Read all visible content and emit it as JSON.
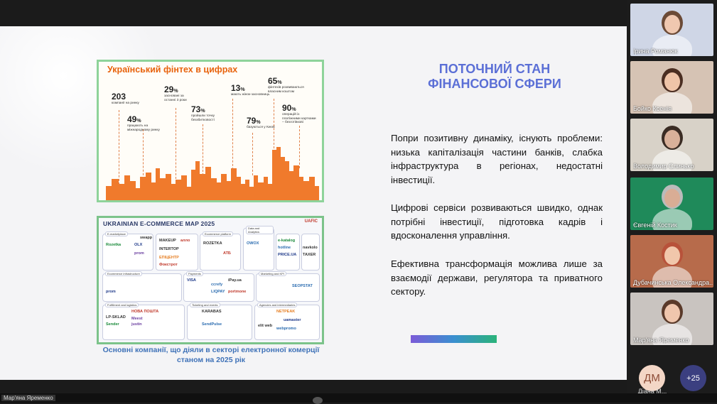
{
  "slide": {
    "title_line1": "ПОТОЧНИЙ СТАН",
    "title_line2": "ФІНАНСОВОЇ СФЕРИ",
    "paragraph1": "Попри позитивну динаміку, існують проблеми: низька капіталізація частини банків, слабка інфраструктура в регіонах, недостатні інвестиції.",
    "paragraph2": "Цифрові сервіси розвиваються швидко, однак потрібні інвестиції, підготовка кадрів і вдосконалення управління.",
    "paragraph3": "Ефективна трансформація можлива лише за взаємодії держави, регулятора та приватного сектору.",
    "caption_line1": "Основні компанії, що діяли в секторі електронної комерції",
    "caption_line2": "станом на 2025 рік",
    "accent_colors": [
      "#7b5bd8",
      "#3a8fd0",
      "#2ab37a"
    ]
  },
  "fintech": {
    "title": "Український фінтех в цифрах",
    "stats": [
      {
        "num": "203",
        "suffix": "",
        "caption": "компанії на ринку"
      },
      {
        "num": "49",
        "suffix": "%",
        "caption": "працюють на міжнародному ринку"
      },
      {
        "num": "29",
        "suffix": "%",
        "caption": "засновані за останні 3 роки"
      },
      {
        "num": "73",
        "suffix": "%",
        "caption": "пройшли точку беззбитковості"
      },
      {
        "num": "13",
        "suffix": "%",
        "caption": "мають жінок-засновниць"
      },
      {
        "num": "65",
        "suffix": "%",
        "caption": "фінтехів розвиваються власним коштом"
      },
      {
        "num": "79",
        "suffix": "%",
        "caption": "базуються у Києві"
      },
      {
        "num": "90",
        "suffix": "%",
        "caption": "операцій із платіжними картками – безготівкові"
      }
    ]
  },
  "ecommerce": {
    "title": "UKRAINIAN E-COMMERCE MAP 2025",
    "logo": "UAFIC",
    "sections": [
      "E-marketplace",
      "Ecommerce platform",
      "Data and Analytics",
      "Ecommerce infrastructure",
      "Payments",
      "Price comparison",
      "Finance",
      "Fulfillment and logistics",
      "Ticketing and events",
      "Customer/community management",
      "Marketing and KPI",
      "Agencies and intermediaries",
      "Legal",
      "Deals",
      "Loyalty"
    ],
    "brands": [
      "swapp",
      "Rozetka",
      "OLX",
      "prom",
      "MAKEUP",
      "алло",
      "INTERTOP",
      "EПІЦЕНТР",
      "Фокстрот",
      "ROZETKA",
      "ATБ",
      "OWOX",
      "e-katalog",
      "hotline",
      "PRICE.UA",
      "navkolo",
      "TAXER",
      "VISA",
      "ccrefy",
      "LIQPAY",
      "portmone",
      "iPay.ua",
      "prom",
      "НОВА ПОШТА",
      "Meest",
      "justin",
      "KARABAS",
      "NETPEAK",
      "uamaster",
      "webpromo",
      "LP-SKLAD",
      "Sender",
      "SendPulse",
      "elit web",
      "SEOPSTAT"
    ]
  },
  "participants": [
    {
      "name": "Ірина Романюк",
      "bg": "#cfd6e6",
      "skin": "#f0c8b0",
      "hair": "#6b4a36"
    },
    {
      "name": "Бойко Ксенія",
      "bg": "#d6c3b4",
      "skin": "#efc4a8",
      "hair": "#4b2e22"
    },
    {
      "name": "Володимир Слинько",
      "bg": "#d8d2c8",
      "skin": "#d9b19a",
      "hair": "#3a2c24"
    },
    {
      "name": "Євгеній Костик",
      "bg": "#1f8a5a",
      "skin": "#d9ad95",
      "hair": "#bbbbbb"
    },
    {
      "name": "Дубачинська Олександра...",
      "bg": "#b76b4b",
      "skin": "#f1c7ab",
      "hair": "#b8523a"
    },
    {
      "name": "Мар'яна Яременко",
      "bg": "#c9c4c0",
      "skin": "#efc6ad",
      "hair": "#5a3a2a"
    }
  ],
  "extra": {
    "avatar_initials": "ДМ",
    "avatar_name": "Діана М...",
    "more_count": "+25",
    "presenter_tag": "Мар'яна Яременко"
  }
}
